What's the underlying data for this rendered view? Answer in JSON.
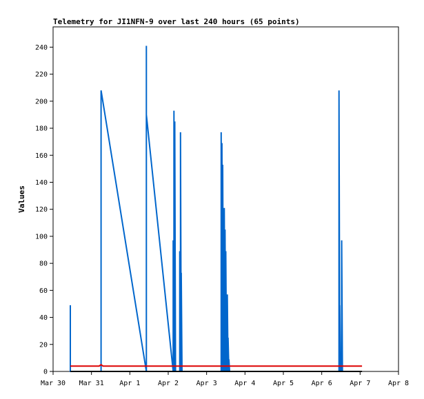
{
  "chart_data": {
    "type": "line",
    "title": "Telemetry for JI1NFN-9 over last 240 hours (65 points)",
    "xlabel": "",
    "ylabel": "Values",
    "x_ticks": [
      "Mar 30",
      "Mar 31",
      "Apr 1",
      "Apr 2",
      "Apr 3",
      "Apr 4",
      "Apr 5",
      "Apr 6",
      "Apr 7",
      "Apr 8"
    ],
    "xlim_days": [
      0,
      9
    ],
    "ylim": [
      0,
      255
    ],
    "y_ticks": [
      0,
      20,
      40,
      60,
      80,
      100,
      120,
      140,
      160,
      180,
      200,
      220,
      240
    ],
    "grid": false,
    "legend": "none",
    "series": [
      {
        "color": "#0066cc",
        "points": [
          [
            0.45,
            0
          ],
          [
            0.45,
            49
          ],
          [
            0.45,
            0
          ],
          [
            1.25,
            0
          ],
          [
            1.25,
            208
          ],
          [
            2.43,
            0
          ],
          [
            2.43,
            241
          ],
          [
            2.43,
            190
          ],
          [
            3.13,
            0
          ],
          [
            3.13,
            97
          ],
          [
            3.15,
            0
          ],
          [
            3.15,
            193
          ],
          [
            3.17,
            0
          ],
          [
            3.17,
            185
          ],
          [
            3.19,
            0
          ],
          [
            3.3,
            0
          ],
          [
            3.3,
            89
          ],
          [
            3.32,
            0
          ],
          [
            3.32,
            177
          ],
          [
            3.34,
            0
          ],
          [
            3.34,
            73
          ],
          [
            3.36,
            0
          ],
          [
            4.38,
            0
          ],
          [
            4.38,
            177
          ],
          [
            4.4,
            0
          ],
          [
            4.4,
            169
          ],
          [
            4.42,
            0
          ],
          [
            4.42,
            153
          ],
          [
            4.44,
            0
          ],
          [
            4.46,
            0
          ],
          [
            4.46,
            121
          ],
          [
            4.48,
            0
          ],
          [
            4.48,
            105
          ],
          [
            4.5,
            0
          ],
          [
            4.5,
            89
          ],
          [
            4.52,
            0
          ],
          [
            4.54,
            0
          ],
          [
            4.54,
            57
          ],
          [
            4.56,
            0
          ],
          [
            4.56,
            25
          ],
          [
            4.58,
            0
          ],
          [
            4.58,
            9
          ],
          [
            4.6,
            0
          ],
          [
            7.45,
            0
          ],
          [
            7.45,
            208
          ],
          [
            7.47,
            0
          ],
          [
            7.47,
            49
          ],
          [
            7.49,
            0
          ],
          [
            7.52,
            0
          ],
          [
            7.52,
            97
          ],
          [
            7.54,
            0
          ]
        ]
      },
      {
        "color": "#dd0000",
        "points": [
          [
            0.45,
            4
          ],
          [
            1.2,
            4
          ],
          [
            1.25,
            5
          ],
          [
            1.3,
            4
          ],
          [
            8.05,
            4
          ]
        ]
      },
      {
        "color": "#000000",
        "points": [
          [
            0.45,
            0
          ],
          [
            8.05,
            0
          ]
        ]
      }
    ]
  }
}
